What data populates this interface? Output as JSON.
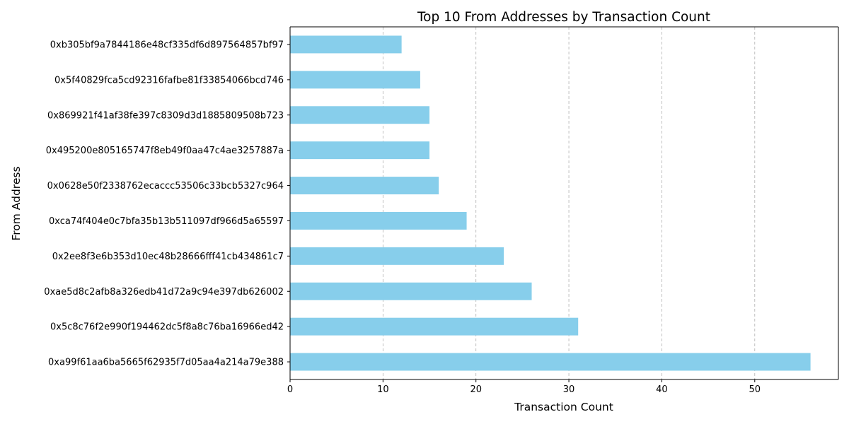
{
  "chart_data": {
    "type": "bar",
    "orientation": "horizontal",
    "title": "Top 10 From Addresses by Transaction Count",
    "xlabel": "Transaction Count",
    "ylabel": "From Address",
    "xlim": [
      0,
      59
    ],
    "xticks": [
      0,
      10,
      20,
      30,
      40,
      50
    ],
    "grid": "x-axis dashed",
    "bar_color": "#87CEEB",
    "categories": [
      "0xa99f61aa6ba5665f62935f7d05aa4a214a79e388",
      "0x5c8c76f2e990f194462dc5f8a8c76ba16966ed42",
      "0xae5d8c2afb8a326edb41d72a9c94e397db626002",
      "0x2ee8f3e6b353d10ec48b28666fff41cb434861c7",
      "0xca74f404e0c7bfa35b13b511097df966d5a65597",
      "0x0628e50f2338762ecaccc53506c33bcb5327c964",
      "0x495200e805165747f8eb49f0aa47c4ae3257887a",
      "0x869921f41af38fe397c8309d3d1885809508b723",
      "0x5f40829fca5cd92316fafbe81f33854066bcd746",
      "0xb305bf9a7844186e48cf335df6d897564857bf97"
    ],
    "values": [
      56,
      31,
      26,
      23,
      19,
      16,
      15,
      15,
      14,
      12
    ]
  }
}
